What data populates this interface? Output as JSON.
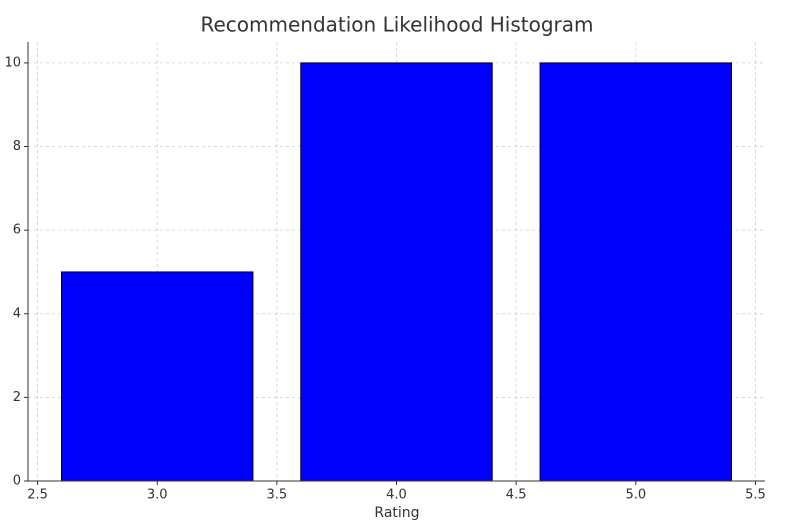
{
  "chart_data": {
    "type": "bar",
    "title": "Recommendation Likelihood Histogram",
    "x_label": "Rating",
    "x": [
      3,
      4,
      5
    ],
    "values": [
      5,
      10,
      10
    ],
    "color": "#0000ff",
    "edgecolor": "#000000",
    "xlim": [
      2.46,
      5.54
    ],
    "xticks": [
      2.5,
      {
        "value": 3,
        "label": "3.0"
      },
      3.5,
      {
        "value": 4,
        "label": "4.0"
      },
      4.5,
      {
        "value": 5,
        "label": "5.0"
      },
      5.5
    ],
    "ylim": [
      0,
      10.5
    ],
    "yticks": [
      0,
      2,
      4,
      6,
      8,
      10
    ],
    "grid": true
  }
}
